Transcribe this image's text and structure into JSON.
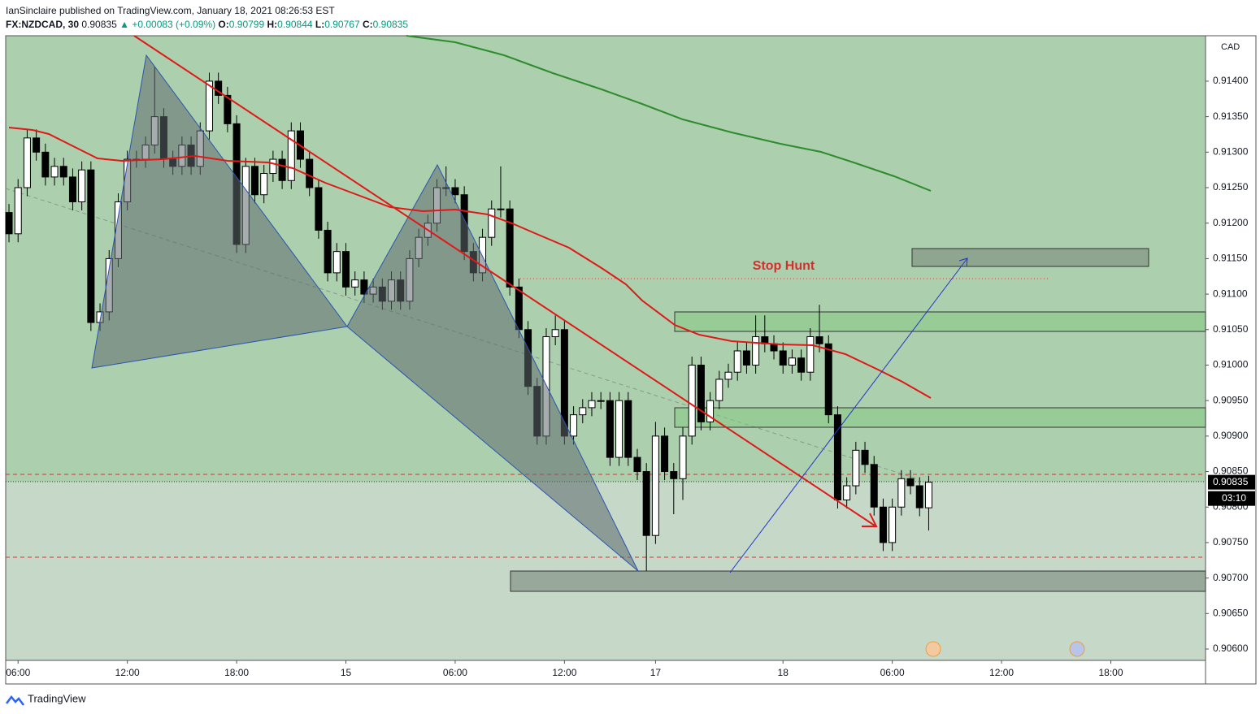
{
  "header": {
    "publisher": "IanSinclaire published on TradingView.com, January 18, 2021 08:26:53 EST",
    "symbol": "FX:NZDCAD, 30",
    "last": "0.90835",
    "change": "+0.00083 (+0.09%)",
    "open_label": "O:",
    "open": "0.90799",
    "high_label": "H:",
    "high": "0.90844",
    "low_label": "L:",
    "low": "0.90767",
    "close_label": "C:",
    "close": "0.90835"
  },
  "chart_data": {
    "type": "candlestick",
    "currency": "CAD",
    "annotation": "Stop Hunt",
    "up_color": "#ffffff",
    "down_color": "#000000",
    "open": [
      0.91215,
      0.91185,
      0.9125,
      0.9132,
      0.913,
      0.91265,
      0.9128,
      0.91265,
      0.9123,
      0.91275,
      0.9106,
      0.91075,
      0.9115,
      0.9123,
      0.9129,
      0.9129,
      0.9131,
      0.9135,
      0.9129,
      0.9128,
      0.9131,
      0.9128,
      0.9133,
      0.914,
      0.9138,
      0.9134,
      0.9117,
      0.9128,
      0.9124,
      0.9127,
      0.9129,
      0.9126,
      0.9133,
      0.9129,
      0.9125,
      0.9119,
      0.9113,
      0.9116,
      0.9111,
      0.9112,
      0.911,
      0.9111,
      0.9109,
      0.9112,
      0.9109,
      0.9115,
      0.9118,
      0.912,
      0.9125,
      0.9125,
      0.9124,
      0.9116,
      0.9113,
      0.9118,
      0.9122,
      0.9122,
      0.9111,
      0.9105,
      0.9097,
      0.909,
      0.9104,
      0.9105,
      0.909,
      0.9093,
      0.9094,
      0.9095,
      0.9095,
      0.9087,
      0.9095,
      0.9087,
      0.9085,
      0.9076,
      0.909,
      0.9085,
      0.9084,
      0.909,
      0.91,
      0.9092,
      0.9095,
      0.9098,
      0.9099,
      0.9102,
      0.91,
      0.9104,
      0.9103,
      0.9102,
      0.91,
      0.9101,
      0.9099,
      0.9104,
      0.9103,
      0.9093,
      0.9081,
      0.9083,
      0.9088,
      0.9086,
      0.908,
      0.9075,
      0.908,
      0.9084,
      0.9083,
      0.90799
    ],
    "high": [
      0.91227,
      0.91262,
      0.91332,
      0.91332,
      0.91312,
      0.91292,
      0.91292,
      0.91277,
      0.91287,
      0.91287,
      0.91087,
      0.91162,
      0.91242,
      0.91302,
      0.91302,
      0.91322,
      0.9142,
      0.91362,
      0.91302,
      0.91322,
      0.91322,
      0.91342,
      0.91412,
      0.91412,
      0.91392,
      0.91352,
      0.91292,
      0.91292,
      0.91282,
      0.91302,
      0.91302,
      0.91342,
      0.91342,
      0.91302,
      0.91262,
      0.91202,
      0.91172,
      0.91172,
      0.91132,
      0.91132,
      0.91122,
      0.91122,
      0.91132,
      0.91132,
      0.91162,
      0.91192,
      0.91212,
      0.91262,
      0.9128,
      0.91262,
      0.91252,
      0.91172,
      0.91192,
      0.91232,
      0.9128,
      0.91232,
      0.91122,
      0.91062,
      0.90982,
      0.91052,
      0.9107,
      0.91062,
      0.90942,
      0.90952,
      0.90962,
      0.90962,
      0.90962,
      0.90962,
      0.90962,
      0.90882,
      0.90862,
      0.9092,
      0.90912,
      0.90862,
      0.90912,
      0.91012,
      0.91012,
      0.90962,
      0.90992,
      0.91002,
      0.91032,
      0.91032,
      0.9107,
      0.9107,
      0.91042,
      0.91032,
      0.91022,
      0.91022,
      0.91052,
      0.91085,
      0.91042,
      0.90942,
      0.90842,
      0.90892,
      0.90892,
      0.90872,
      0.90812,
      0.90812,
      0.90852,
      0.90852,
      0.90842,
      0.90844
    ],
    "low": [
      0.91173,
      0.91173,
      0.91238,
      0.91288,
      0.91253,
      0.91253,
      0.91253,
      0.91218,
      0.91218,
      0.91048,
      0.91048,
      0.91063,
      0.91138,
      0.91218,
      0.91278,
      0.91278,
      0.91298,
      0.91278,
      0.91268,
      0.91268,
      0.91268,
      0.91268,
      0.91318,
      0.91368,
      0.91328,
      0.91158,
      0.91158,
      0.91228,
      0.91228,
      0.91258,
      0.91248,
      0.91248,
      0.91278,
      0.91238,
      0.91178,
      0.91118,
      0.91118,
      0.91098,
      0.91098,
      0.91088,
      0.91088,
      0.91078,
      0.91078,
      0.91078,
      0.91078,
      0.91138,
      0.91168,
      0.91188,
      0.91238,
      0.91228,
      0.91148,
      0.91118,
      0.91118,
      0.91168,
      0.91208,
      0.91098,
      0.91038,
      0.90958,
      0.90888,
      0.90888,
      0.91028,
      0.90888,
      0.90888,
      0.90918,
      0.90928,
      0.90938,
      0.90858,
      0.90858,
      0.90858,
      0.90838,
      0.9071,
      0.90748,
      0.90838,
      0.9079,
      0.9081,
      0.90888,
      0.90908,
      0.90908,
      0.90938,
      0.90968,
      0.90978,
      0.90988,
      0.90988,
      0.91018,
      0.91008,
      0.90988,
      0.90988,
      0.90978,
      0.90978,
      0.91018,
      0.90918,
      0.90798,
      0.90798,
      0.90818,
      0.90848,
      0.90788,
      0.90738,
      0.90738,
      0.90788,
      0.90818,
      0.90787,
      0.90767
    ],
    "close": [
      0.91185,
      0.9125,
      0.9132,
      0.913,
      0.91265,
      0.9128,
      0.91265,
      0.9123,
      0.91275,
      0.9106,
      0.91075,
      0.9115,
      0.9123,
      0.9129,
      0.9129,
      0.9131,
      0.9135,
      0.9129,
      0.9128,
      0.9131,
      0.9128,
      0.9133,
      0.914,
      0.9138,
      0.9134,
      0.9117,
      0.9128,
      0.9124,
      0.9127,
      0.9129,
      0.9126,
      0.9133,
      0.9129,
      0.9125,
      0.9119,
      0.9113,
      0.9116,
      0.9111,
      0.9112,
      0.911,
      0.9111,
      0.9109,
      0.9112,
      0.9109,
      0.9115,
      0.9118,
      0.912,
      0.9125,
      0.9125,
      0.9124,
      0.9116,
      0.9113,
      0.9118,
      0.9122,
      0.9122,
      0.9111,
      0.9105,
      0.9097,
      0.909,
      0.9104,
      0.9105,
      0.909,
      0.9093,
      0.9094,
      0.9095,
      0.9095,
      0.9087,
      0.9095,
      0.9087,
      0.9085,
      0.9076,
      0.909,
      0.9085,
      0.9084,
      0.909,
      0.91,
      0.9092,
      0.9095,
      0.9098,
      0.9099,
      0.9102,
      0.91,
      0.9104,
      0.9103,
      0.9102,
      0.91,
      0.9101,
      0.9099,
      0.9104,
      0.9103,
      0.9093,
      0.9081,
      0.9083,
      0.9088,
      0.9086,
      0.908,
      0.9075,
      0.908,
      0.9084,
      0.9083,
      0.90799,
      0.90835
    ],
    "ylim": [
      0.90584,
      0.91464
    ],
    "yticks": [
      {
        "value": 0.906,
        "label": "0.90600"
      },
      {
        "value": 0.9065,
        "label": "0.90650"
      },
      {
        "value": 0.907,
        "label": "0.90700"
      },
      {
        "value": 0.9075,
        "label": "0.90750"
      },
      {
        "value": 0.908,
        "label": "0.90800"
      },
      {
        "value": 0.9085,
        "label": "0.90850"
      },
      {
        "value": 0.909,
        "label": "0.90900"
      },
      {
        "value": 0.9095,
        "label": "0.90950"
      },
      {
        "value": 0.91,
        "label": "0.91000"
      },
      {
        "value": 0.9105,
        "label": "0.91050"
      },
      {
        "value": 0.911,
        "label": "0.91100"
      },
      {
        "value": 0.9115,
        "label": "0.91150"
      },
      {
        "value": 0.912,
        "label": "0.91200"
      },
      {
        "value": 0.9125,
        "label": "0.91250"
      },
      {
        "value": 0.913,
        "label": "0.91300"
      },
      {
        "value": 0.9135,
        "label": "0.91350"
      },
      {
        "value": 0.914,
        "label": "0.91400"
      }
    ],
    "xlim": [
      -0.36,
      131.4
    ],
    "xticks": [
      {
        "value": 1,
        "label": "06:00"
      },
      {
        "value": 13,
        "label": "12:00"
      },
      {
        "value": 25,
        "label": "18:00"
      },
      {
        "value": 37,
        "label": "15"
      },
      {
        "value": 49,
        "label": "06:00"
      },
      {
        "value": 61,
        "label": "12:00"
      },
      {
        "value": 71,
        "label": "17"
      },
      {
        "value": 85,
        "label": "18"
      },
      {
        "value": 97,
        "label": "06:00"
      },
      {
        "value": 109,
        "label": "12:00"
      },
      {
        "value": 121,
        "label": "18:00"
      }
    ],
    "last_price": {
      "value": 0.90835,
      "label": "0.90835"
    },
    "countdown": "03:10"
  },
  "footer": {
    "brand": "TradingView"
  }
}
